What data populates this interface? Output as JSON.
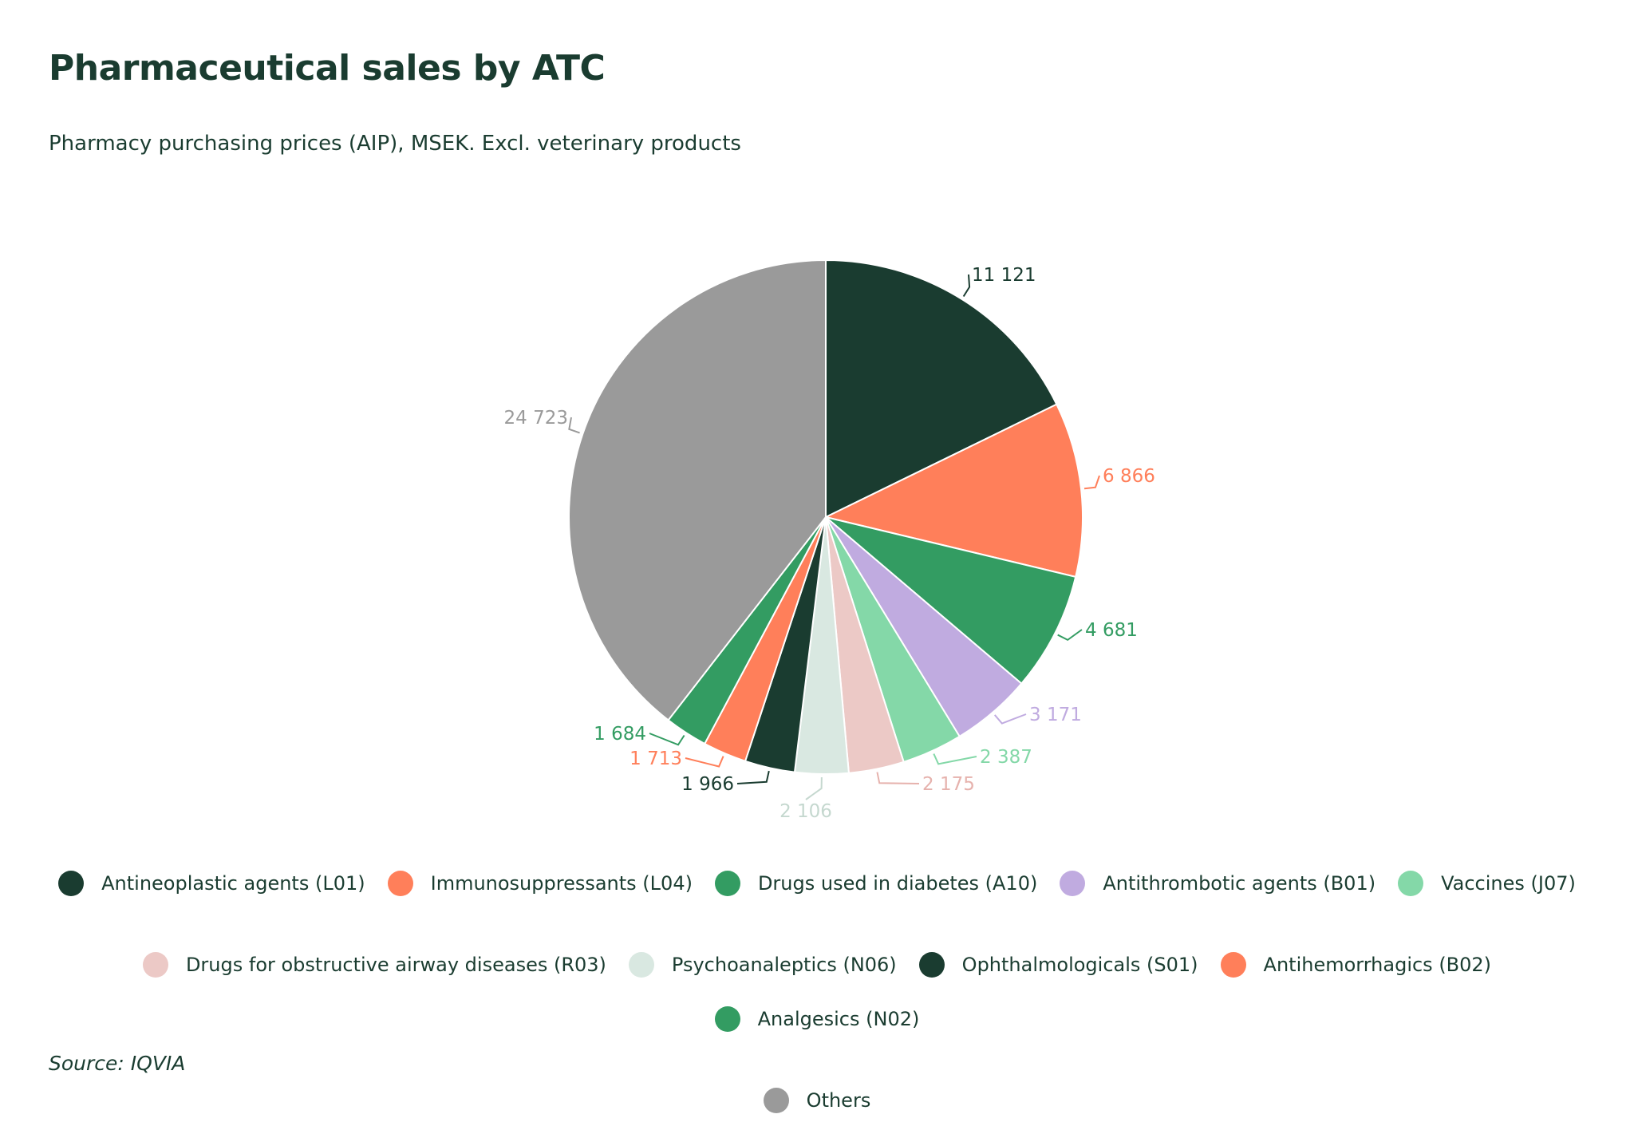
{
  "title": "Pharmaceutical sales by ATC",
  "subtitle": "Pharmacy purchasing prices (AIP), MSEK. Excl. veterinary products",
  "source": "Source: IQVIA",
  "chart_data": {
    "type": "pie",
    "title": "Pharmaceutical sales by ATC",
    "subtitle": "Pharmacy purchasing prices (AIP), MSEK. Excl. veterinary products",
    "legend_position": "bottom",
    "slices": [
      {
        "name": "Antineoplastic agents (L01)",
        "value": 11121,
        "label": "11 121",
        "color": "#1a3c30"
      },
      {
        "name": "Immunosuppressants (L04)",
        "value": 6866,
        "label": "6 866",
        "color": "#ff7f5a"
      },
      {
        "name": "Drugs used in diabetes (A10)",
        "value": 4681,
        "label": "4 681",
        "color": "#339c62"
      },
      {
        "name": "Antithrombotic agents (B01)",
        "value": 3171,
        "label": "3 171",
        "color": "#c0abe0"
      },
      {
        "name": "Vaccines (J07)",
        "value": 2387,
        "label": "2 387",
        "color": "#84d8a8"
      },
      {
        "name": "Drugs for obstructive airway diseases (R03)",
        "value": 2175,
        "label": "2 175",
        "color": "#ecc9c6"
      },
      {
        "name": "Psychoanaleptics (N06)",
        "value": 2106,
        "label": "2 106",
        "color": "#d9e8e1"
      },
      {
        "name": "Ophthalmologicals (S01)",
        "value": 1966,
        "label": "1 966",
        "color": "#1a3c30"
      },
      {
        "name": "Antihemorrhagics (B02)",
        "value": 1713,
        "label": "1 713",
        "color": "#ff7f5a"
      },
      {
        "name": "Analgesics (N02)",
        "value": 1684,
        "label": "1 684",
        "color": "#339c62"
      },
      {
        "name": "Others",
        "value": 24723,
        "label": "24 723",
        "color": "#9a9a9a"
      }
    ]
  }
}
